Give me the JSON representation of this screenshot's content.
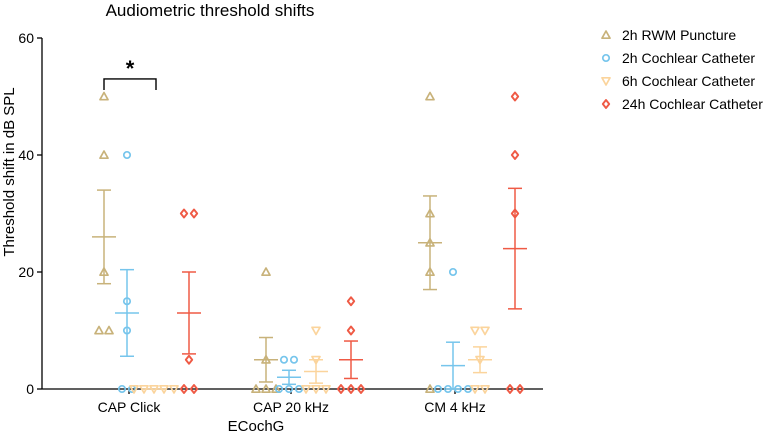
{
  "chart_data": {
    "type": "scatter",
    "title": "Audiometric threshold shifts",
    "xlabel": "ECochG",
    "ylabel": "Threshold shift in dB SPL",
    "ylim": [
      0,
      60
    ],
    "yticks": [
      0,
      20,
      40,
      60
    ],
    "categories": [
      "CAP Click",
      "CAP 20 kHz",
      "CM 4 kHz"
    ],
    "legend_position": "top-right",
    "series": [
      {
        "name": "2h RWM Puncture",
        "color": "#c8b27a",
        "marker": "triangle-up",
        "points": [
          [
            50,
            40,
            20,
            10,
            10
          ],
          [
            20,
            5,
            0,
            0,
            0
          ],
          [
            50,
            30,
            25,
            20,
            0
          ]
        ],
        "mean": [
          26,
          5,
          25
        ],
        "sem": [
          8,
          3.8,
          8
        ]
      },
      {
        "name": "2h Cochlear Catheter",
        "color": "#76c5ec",
        "marker": "circle",
        "points": [
          [
            40,
            15,
            10,
            0,
            0
          ],
          [
            5,
            5,
            0,
            0,
            0
          ],
          [
            20,
            0,
            0,
            0,
            0
          ]
        ],
        "mean": [
          13,
          2,
          4
        ],
        "sem": [
          7.4,
          1.2,
          4
        ]
      },
      {
        "name": "6h Cochlear Catheter",
        "color": "#fbd49c",
        "marker": "triangle-down",
        "points": [
          [
            0,
            0,
            0,
            0,
            0
          ],
          [
            10,
            5,
            0,
            0,
            0
          ],
          [
            10,
            10,
            5,
            0,
            0
          ]
        ],
        "mean": [
          0,
          3,
          5
        ],
        "sem": [
          0,
          2,
          2.2
        ]
      },
      {
        "name": "24h Cochlear Catheter",
        "color": "#ef5a45",
        "marker": "diamond",
        "points": [
          [
            30,
            30,
            5,
            0,
            0
          ],
          [
            15,
            10,
            0,
            0,
            0
          ],
          [
            50,
            40,
            30,
            0,
            0
          ]
        ],
        "mean": [
          13,
          5,
          24
        ],
        "sem": [
          7,
          3.2,
          10.3
        ]
      }
    ],
    "annotation": {
      "text": "*",
      "category": "CAP Click",
      "between": [
        "2h RWM Puncture",
        "6h Cochlear Catheter"
      ],
      "y": 53
    }
  }
}
